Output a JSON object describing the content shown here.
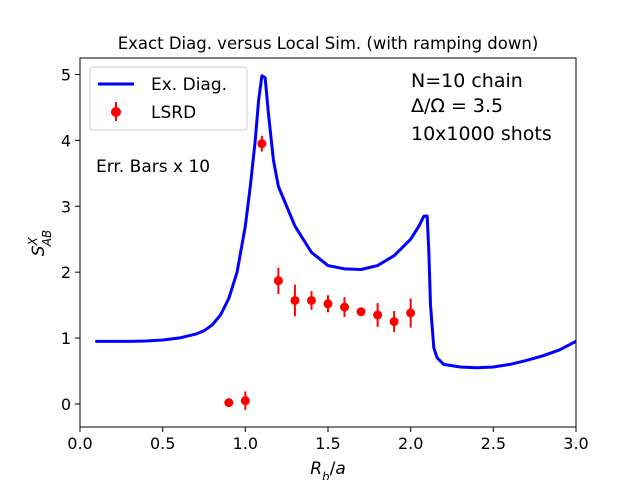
{
  "chart_data": {
    "type": "line",
    "title": "Exact Diag. versus Local Sim. (with ramping down)",
    "xlabel": "R_b/a",
    "ylabel": "S^X_AB",
    "xlim": [
      0.0,
      3.0
    ],
    "ylim": [
      -0.35,
      5.25
    ],
    "xticks": [
      0.0,
      0.5,
      1.0,
      1.5,
      2.0,
      2.5,
      3.0
    ],
    "xtick_labels": [
      "0.0",
      "0.5",
      "1.0",
      "1.5",
      "2.0",
      "2.5",
      "3.0"
    ],
    "yticks": [
      0,
      1,
      2,
      3,
      4,
      5
    ],
    "ytick_labels": [
      "0",
      "1",
      "2",
      "3",
      "4",
      "5"
    ],
    "legend_position": "top-left",
    "annotations": {
      "chain": "N=10 chain",
      "ratio": "Δ/Ω = 3.5",
      "shots": "10x1000 shots",
      "errbars": "Err. Bars x 10"
    },
    "series": [
      {
        "name": "Ex. Diag.",
        "kind": "line",
        "color": "#0000ff",
        "x": [
          0.1,
          0.2,
          0.3,
          0.4,
          0.5,
          0.6,
          0.7,
          0.75,
          0.8,
          0.85,
          0.9,
          0.95,
          1.0,
          1.03,
          1.06,
          1.08,
          1.1,
          1.12,
          1.14,
          1.17,
          1.2,
          1.25,
          1.3,
          1.4,
          1.5,
          1.6,
          1.7,
          1.8,
          1.9,
          2.0,
          2.05,
          2.08,
          2.1,
          2.11,
          2.12,
          2.14,
          2.16,
          2.2,
          2.3,
          2.4,
          2.5,
          2.6,
          2.7,
          2.8,
          2.9,
          3.0
        ],
        "y": [
          0.95,
          0.95,
          0.95,
          0.955,
          0.97,
          1.0,
          1.06,
          1.11,
          1.2,
          1.35,
          1.6,
          2.0,
          2.7,
          3.3,
          4.0,
          4.6,
          4.98,
          4.95,
          4.4,
          3.7,
          3.3,
          3.0,
          2.7,
          2.3,
          2.1,
          2.05,
          2.04,
          2.1,
          2.25,
          2.5,
          2.7,
          2.85,
          2.85,
          2.3,
          1.5,
          0.85,
          0.7,
          0.6,
          0.56,
          0.55,
          0.56,
          0.6,
          0.66,
          0.73,
          0.82,
          0.95
        ]
      },
      {
        "name": "LSRD",
        "kind": "errorbar",
        "color": "#ff0000",
        "x": [
          0.9,
          1.0,
          1.1,
          1.2,
          1.3,
          1.4,
          1.5,
          1.6,
          1.7,
          1.8,
          1.9,
          2.0
        ],
        "y": [
          0.02,
          0.05,
          3.95,
          1.87,
          1.57,
          1.57,
          1.52,
          1.47,
          1.4,
          1.35,
          1.25,
          1.38
        ],
        "yerr": [
          0.03,
          0.14,
          0.12,
          0.2,
          0.24,
          0.14,
          0.13,
          0.15,
          0.05,
          0.18,
          0.16,
          0.22
        ]
      }
    ]
  }
}
